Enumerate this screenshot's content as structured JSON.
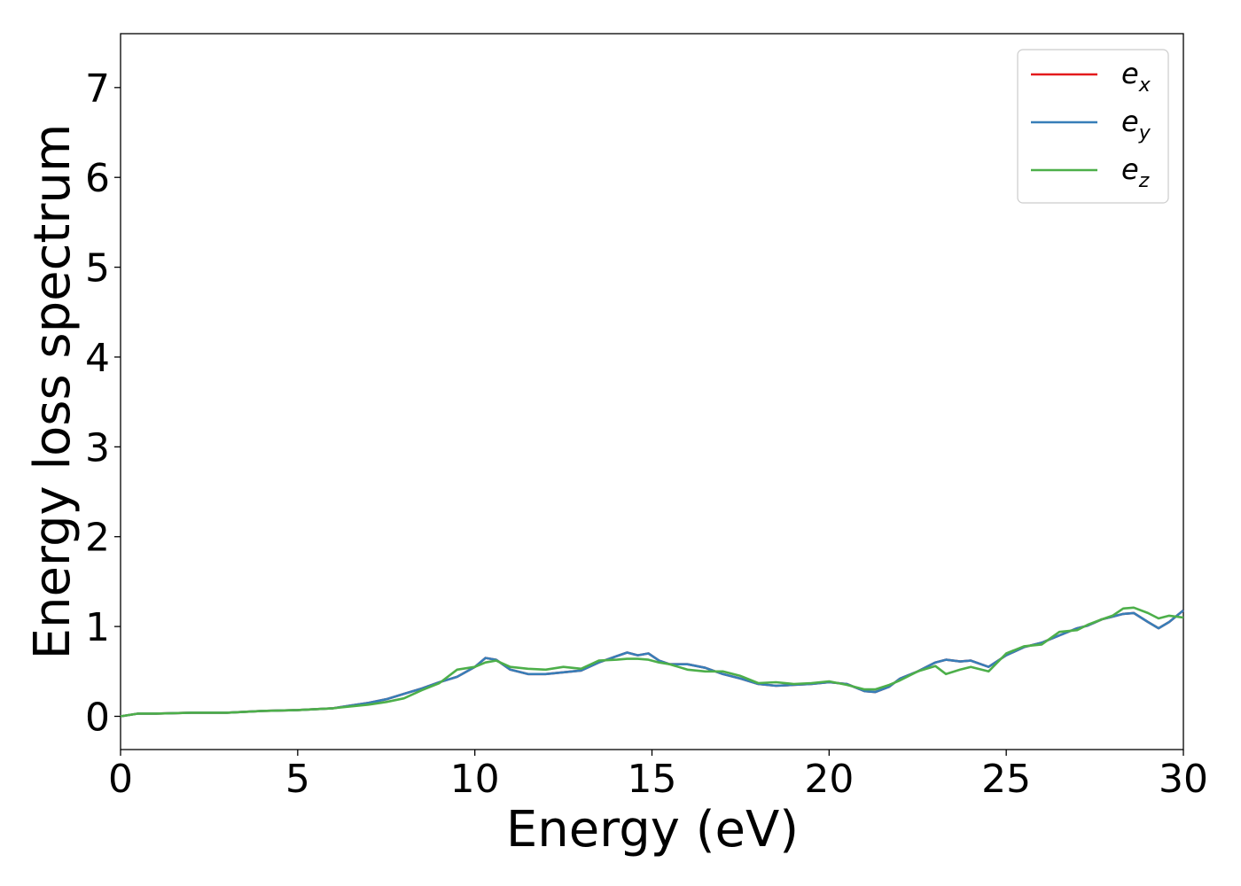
{
  "chart_data": {
    "type": "line",
    "title": "",
    "xlabel": "Energy (eV)",
    "ylabel": "Energy loss spectrum",
    "xlim": [
      0,
      30
    ],
    "ylim": [
      -0.37,
      7.6
    ],
    "xticks": [
      0,
      5,
      10,
      15,
      20,
      25,
      30
    ],
    "yticks": [
      0,
      1,
      2,
      3,
      4,
      5,
      6,
      7
    ],
    "grid": false,
    "legend_position": "top-right",
    "series": [
      {
        "name": "e_x",
        "name_main": "e",
        "name_sub": "x",
        "color": "#e41a1c",
        "x": [
          0,
          0.5,
          1,
          2,
          3,
          4,
          5,
          6,
          6.5,
          7,
          7.5,
          8,
          8.5,
          9,
          9.5,
          10,
          10.3,
          10.6,
          11,
          11.5,
          12,
          12.5,
          13,
          13.5,
          14,
          14.3,
          14.6,
          14.9,
          15.2,
          15.5,
          16,
          16.5,
          17,
          17.5,
          18,
          18.5,
          19,
          19.5,
          20,
          20.5,
          21,
          21.3,
          21.7,
          22,
          22.5,
          23,
          23.3,
          23.7,
          24,
          24.5,
          25,
          25.5,
          26,
          26.5,
          27,
          27.3,
          27.7,
          28,
          28.3,
          28.6,
          29,
          29.3,
          29.6,
          30
        ],
        "y": [
          0,
          0.03,
          0.03,
          0.04,
          0.04,
          0.06,
          0.07,
          0.09,
          0.12,
          0.15,
          0.19,
          0.25,
          0.31,
          0.38,
          0.44,
          0.55,
          0.65,
          0.63,
          0.52,
          0.47,
          0.47,
          0.49,
          0.51,
          0.6,
          0.67,
          0.71,
          0.68,
          0.7,
          0.62,
          0.58,
          0.58,
          0.54,
          0.47,
          0.42,
          0.36,
          0.34,
          0.35,
          0.36,
          0.38,
          0.36,
          0.28,
          0.27,
          0.33,
          0.42,
          0.5,
          0.6,
          0.63,
          0.61,
          0.62,
          0.55,
          0.68,
          0.77,
          0.82,
          0.9,
          0.98,
          1.01,
          1.08,
          1.11,
          1.14,
          1.15,
          1.05,
          0.98,
          1.05,
          1.18
        ]
      },
      {
        "name": "e_y",
        "name_main": "e",
        "name_sub": "y",
        "color": "#377eb8",
        "x": [
          0,
          0.5,
          1,
          2,
          3,
          4,
          5,
          6,
          6.5,
          7,
          7.5,
          8,
          8.5,
          9,
          9.5,
          10,
          10.3,
          10.6,
          11,
          11.5,
          12,
          12.5,
          13,
          13.5,
          14,
          14.3,
          14.6,
          14.9,
          15.2,
          15.5,
          16,
          16.5,
          17,
          17.5,
          18,
          18.5,
          19,
          19.5,
          20,
          20.5,
          21,
          21.3,
          21.7,
          22,
          22.5,
          23,
          23.3,
          23.7,
          24,
          24.5,
          25,
          25.5,
          26,
          26.5,
          27,
          27.3,
          27.7,
          28,
          28.3,
          28.6,
          29,
          29.3,
          29.6,
          30
        ],
        "y": [
          0,
          0.03,
          0.03,
          0.04,
          0.04,
          0.06,
          0.07,
          0.09,
          0.12,
          0.15,
          0.19,
          0.25,
          0.31,
          0.38,
          0.44,
          0.55,
          0.65,
          0.63,
          0.52,
          0.47,
          0.47,
          0.49,
          0.51,
          0.6,
          0.67,
          0.71,
          0.68,
          0.7,
          0.62,
          0.58,
          0.58,
          0.54,
          0.47,
          0.42,
          0.36,
          0.34,
          0.35,
          0.36,
          0.38,
          0.36,
          0.28,
          0.27,
          0.33,
          0.42,
          0.5,
          0.6,
          0.63,
          0.61,
          0.62,
          0.55,
          0.68,
          0.77,
          0.82,
          0.9,
          0.98,
          1.01,
          1.08,
          1.11,
          1.14,
          1.15,
          1.05,
          0.98,
          1.05,
          1.18
        ]
      },
      {
        "name": "e_z",
        "name_main": "e",
        "name_sub": "z",
        "color": "#4daf4a",
        "x": [
          0,
          0.5,
          1,
          2,
          3,
          4,
          5,
          6,
          6.5,
          7,
          7.5,
          8,
          8.5,
          9,
          9.5,
          10,
          10.3,
          10.6,
          11,
          11.5,
          12,
          12.5,
          13,
          13.5,
          14,
          14.3,
          14.6,
          14.9,
          15.2,
          15.5,
          16,
          16.5,
          17,
          17.5,
          18,
          18.5,
          19,
          19.5,
          20,
          20.5,
          21,
          21.3,
          21.7,
          22,
          22.5,
          23,
          23.3,
          23.7,
          24,
          24.5,
          25,
          25.5,
          26,
          26.5,
          27,
          27.3,
          27.7,
          28,
          28.3,
          28.6,
          29,
          29.3,
          29.6,
          30
        ],
        "y": [
          0,
          0.03,
          0.03,
          0.04,
          0.04,
          0.06,
          0.07,
          0.09,
          0.11,
          0.13,
          0.16,
          0.2,
          0.29,
          0.37,
          0.52,
          0.55,
          0.6,
          0.62,
          0.55,
          0.53,
          0.52,
          0.55,
          0.53,
          0.62,
          0.63,
          0.64,
          0.64,
          0.63,
          0.6,
          0.58,
          0.52,
          0.5,
          0.5,
          0.45,
          0.37,
          0.38,
          0.36,
          0.37,
          0.39,
          0.35,
          0.3,
          0.3,
          0.35,
          0.4,
          0.5,
          0.56,
          0.47,
          0.52,
          0.55,
          0.5,
          0.7,
          0.78,
          0.8,
          0.94,
          0.96,
          1.02,
          1.08,
          1.12,
          1.2,
          1.21,
          1.15,
          1.09,
          1.12,
          1.1
        ]
      }
    ]
  }
}
